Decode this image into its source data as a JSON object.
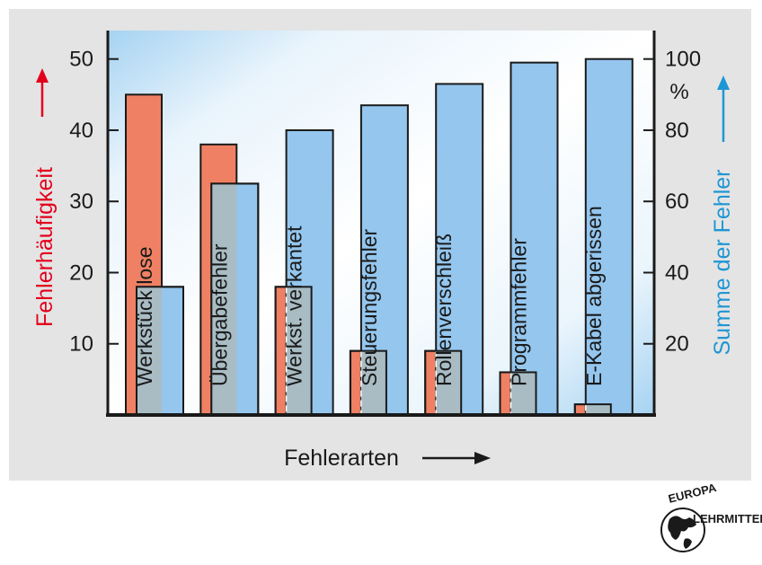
{
  "chart_data": {
    "type": "bar",
    "categories": [
      "Werkstück lose",
      "Übergabefehler",
      "Werkst.  verkantet",
      "Steuerungsfehler",
      "Rollenverschleiß",
      "Programmfehler",
      "E-Kabel abgerissen"
    ],
    "series": [
      {
        "axis": "left",
        "color": "#ef8063",
        "values": [
          45,
          38,
          18,
          9,
          9,
          6,
          1.5
        ]
      },
      {
        "axis": "right",
        "color": "#94c6ee",
        "values": [
          36,
          65,
          80,
          87,
          93,
          99,
          100
        ]
      }
    ],
    "xlabel": "Fehlerarten",
    "ylabel_left": "Fehlerhäufigkeit",
    "ylabel_right": "Summe der Fehler",
    "right_unit": "%",
    "ylim_left": [
      0,
      54
    ],
    "ylim_right": [
      0,
      108
    ],
    "yticks_left": [
      10,
      20,
      30,
      40,
      50
    ],
    "yticks_right": [
      20,
      40,
      60,
      80,
      100
    ],
    "overlap_color": "#a9bcc4",
    "left_axis_color": "#e3001b",
    "right_axis_color": "#1e96d4",
    "grid": false,
    "legend": "none"
  },
  "logo": {
    "top": "EUROPA",
    "right": "LEHRMITTEL",
    "icon": "globe-icon"
  }
}
